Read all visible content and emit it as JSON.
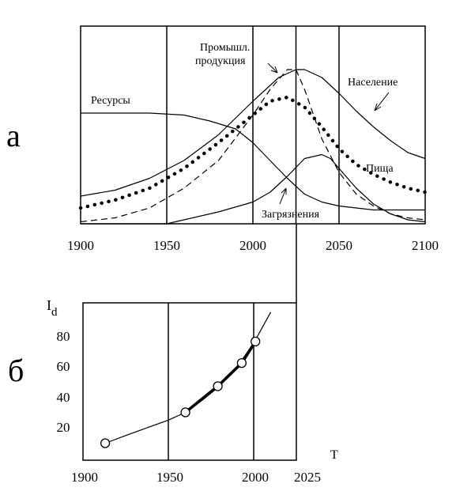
{
  "panel_labels": {
    "a": "а",
    "b": "б"
  },
  "chart_data": [
    {
      "type": "line",
      "panel": "а",
      "title": "",
      "xlabel": "",
      "ylabel": "",
      "xlim": [
        1900,
        2100
      ],
      "x_ticks": [
        "1900",
        "1950",
        "2000",
        "2050",
        "2100"
      ],
      "reference_lines_x": [
        1950,
        2000,
        2025,
        2050
      ],
      "y_scale": "relative (unlabeled)",
      "ylim": [
        0,
        1
      ],
      "grid": false,
      "series": [
        {
          "name": "Ресурсы",
          "style": "solid",
          "x": [
            1900,
            1920,
            1940,
            1960,
            1975,
            1990,
            2000,
            2010,
            2020,
            2030,
            2040,
            2050,
            2060,
            2070,
            2080,
            2090,
            2100
          ],
          "y": [
            0.56,
            0.56,
            0.56,
            0.55,
            0.52,
            0.48,
            0.41,
            0.32,
            0.23,
            0.15,
            0.11,
            0.09,
            0.08,
            0.07,
            0.07,
            0.07,
            0.07
          ]
        },
        {
          "name": "Население",
          "style": "solid",
          "x": [
            1900,
            1920,
            1940,
            1960,
            1980,
            2000,
            2015,
            2025,
            2030,
            2040,
            2050,
            2060,
            2070,
            2080,
            2090,
            2100
          ],
          "y": [
            0.14,
            0.17,
            0.23,
            0.32,
            0.45,
            0.62,
            0.74,
            0.78,
            0.78,
            0.74,
            0.66,
            0.57,
            0.49,
            0.42,
            0.36,
            0.33
          ]
        },
        {
          "name": "Промышл. продукция",
          "style": "dashed",
          "x": [
            1900,
            1920,
            1940,
            1960,
            1980,
            2000,
            2010,
            2020,
            2025,
            2030,
            2040,
            2050,
            2060,
            2070,
            2080,
            2090,
            2100
          ],
          "y": [
            0.01,
            0.03,
            0.08,
            0.18,
            0.32,
            0.55,
            0.68,
            0.78,
            0.78,
            0.68,
            0.43,
            0.26,
            0.15,
            0.09,
            0.05,
            0.03,
            0.02
          ]
        },
        {
          "name": "Пища",
          "style": "dotted",
          "x": [
            1900,
            1920,
            1940,
            1960,
            1980,
            2000,
            2010,
            2020,
            2030,
            2040,
            2050,
            2060,
            2070,
            2080,
            2090,
            2100
          ],
          "y": [
            0.08,
            0.12,
            0.18,
            0.28,
            0.41,
            0.55,
            0.62,
            0.64,
            0.59,
            0.49,
            0.38,
            0.3,
            0.25,
            0.21,
            0.18,
            0.16
          ]
        },
        {
          "name": "Загрязнения",
          "style": "solid",
          "x": [
            1900,
            1950,
            1960,
            1980,
            2000,
            2010,
            2020,
            2030,
            2040,
            2045,
            2050,
            2060,
            2070,
            2080,
            2090,
            2100
          ],
          "y": [
            0.0,
            0.0,
            0.02,
            0.06,
            0.11,
            0.16,
            0.24,
            0.33,
            0.35,
            0.33,
            0.28,
            0.18,
            0.1,
            0.05,
            0.02,
            0.01
          ]
        }
      ]
    },
    {
      "type": "line",
      "panel": "б",
      "title": "",
      "xlabel": "T",
      "ylabel": "I",
      "ylabel_subscript": "d",
      "xlim": [
        1900,
        2025
      ],
      "ylim": [
        0,
        100
      ],
      "x_ticks": [
        "1900",
        "1950",
        "2000",
        "2025"
      ],
      "y_ticks": [
        "20",
        "40",
        "60",
        "80"
      ],
      "reference_lines_x": [
        1950,
        2000
      ],
      "grid": false,
      "curve": {
        "x": [
          1913,
          1925,
          1940,
          1950,
          1960,
          1970,
          1980,
          1990,
          2000,
          2005,
          2010
        ],
        "y": [
          11,
          16,
          22,
          26,
          31,
          39,
          48,
          60,
          76,
          86,
          96
        ]
      },
      "markers": {
        "x": [
          1913,
          1960,
          1979,
          1993,
          2001
        ],
        "y": [
          11,
          31,
          48,
          63,
          77
        ]
      },
      "bold_segment_range": [
        1960,
        2001
      ]
    }
  ]
}
